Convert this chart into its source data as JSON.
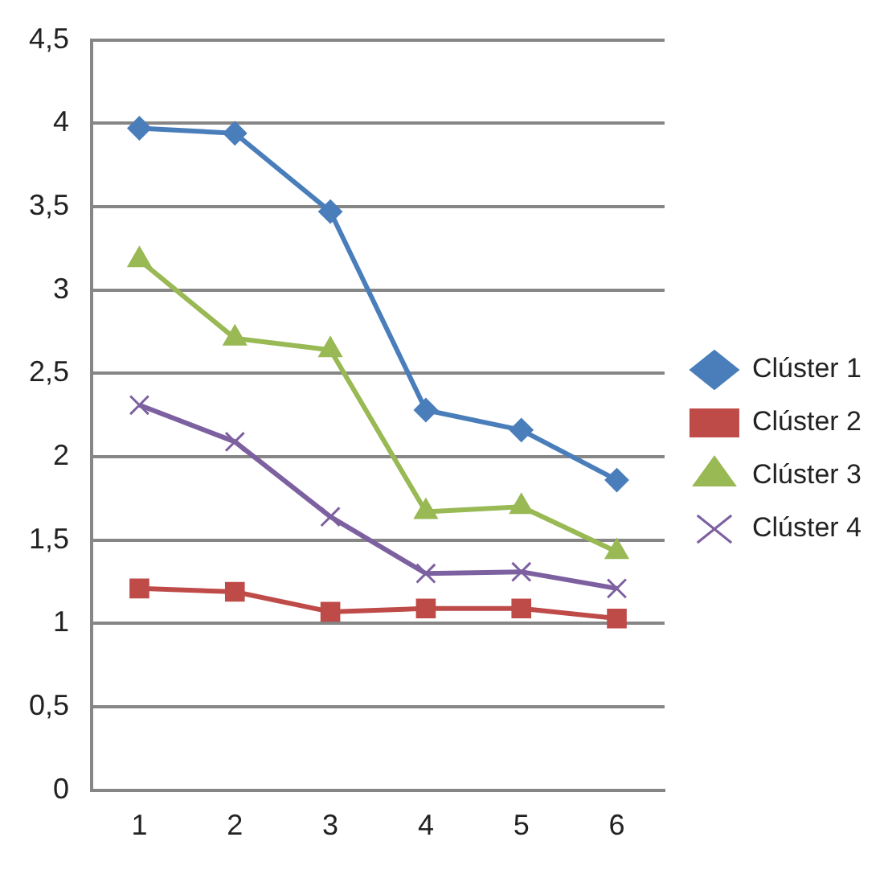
{
  "chart_data": {
    "type": "line",
    "categories": [
      "1",
      "2",
      "3",
      "4",
      "5",
      "6"
    ],
    "series": [
      {
        "name": "Clúster 1",
        "color": "#4a7ebb",
        "marker": "diamond",
        "values": [
          3.97,
          3.94,
          3.47,
          2.28,
          2.16,
          1.86
        ]
      },
      {
        "name": "Clúster 2",
        "color": "#be4b48",
        "marker": "square",
        "values": [
          1.21,
          1.19,
          1.07,
          1.09,
          1.09,
          1.03
        ]
      },
      {
        "name": "Clúster 3",
        "color": "#98b954",
        "marker": "triangle",
        "values": [
          3.18,
          2.71,
          2.64,
          1.67,
          1.7,
          1.43
        ]
      },
      {
        "name": "Clúster 4",
        "color": "#7d60a0",
        "marker": "cross",
        "values": [
          2.31,
          2.09,
          1.64,
          1.3,
          1.31,
          1.21
        ]
      }
    ],
    "ylim": [
      0,
      4.5
    ],
    "yticks": [
      {
        "value": 0,
        "label": "0"
      },
      {
        "value": 0.5,
        "label": "0,5"
      },
      {
        "value": 1,
        "label": "1"
      },
      {
        "value": 1.5,
        "label": "1,5"
      },
      {
        "value": 2,
        "label": "2"
      },
      {
        "value": 2.5,
        "label": "2,5"
      },
      {
        "value": 3,
        "label": "3"
      },
      {
        "value": 3.5,
        "label": "3,5"
      },
      {
        "value": 4,
        "label": "4"
      },
      {
        "value": 4.5,
        "label": "4,5"
      }
    ],
    "grid": "y",
    "legend": "right"
  }
}
